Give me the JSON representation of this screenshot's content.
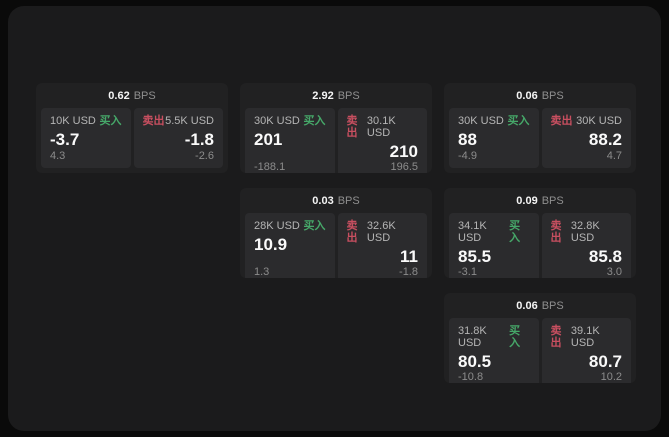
{
  "colors": {
    "background": "#0a0a0a",
    "panel": "#1b1b1c",
    "card": "#212122",
    "tile": "#2b2b2d",
    "text_primary": "#fafafa",
    "text_secondary": "#b5b5b5",
    "text_muted": "#8c8c8c",
    "buy_green": "#46a869",
    "sell_red": "#c84f60"
  },
  "cards": [
    {
      "spread": "0.62",
      "unit": "BPS",
      "buy": {
        "amount": "10K USD",
        "label": "买入",
        "price": "-3.7",
        "change": "4.3"
      },
      "sell": {
        "label": "卖出",
        "amount": "5.5K USD",
        "price": "-1.8",
        "change": "-2.6"
      }
    },
    {
      "spread": "2.92",
      "unit": "BPS",
      "buy": {
        "amount": "30K USD",
        "label": "买入",
        "price": "201",
        "change": "-188.1"
      },
      "sell": {
        "label": "卖出",
        "amount": "30.1K USD",
        "price": "210",
        "change": "196.5"
      }
    },
    {
      "spread": "0.06",
      "unit": "BPS",
      "buy": {
        "amount": "30K USD",
        "label": "买入",
        "price": "88",
        "change": "-4.9"
      },
      "sell": {
        "label": "卖出",
        "amount": "30K USD",
        "price": "88.2",
        "change": "4.7"
      }
    },
    {
      "spread": "0.03",
      "unit": "BPS",
      "buy": {
        "amount": "28K USD",
        "label": "买入",
        "price": "10.9",
        "change": "1.3"
      },
      "sell": {
        "label": "卖出",
        "amount": "32.6K USD",
        "price": "11",
        "change": "-1.8"
      }
    },
    {
      "spread": "0.09",
      "unit": "BPS",
      "buy": {
        "amount": "34.1K USD",
        "label": "买入",
        "price": "85.5",
        "change": "-3.1"
      },
      "sell": {
        "label": "卖出",
        "amount": "32.8K USD",
        "price": "85.8",
        "change": "3.0"
      }
    },
    {
      "spread": "0.06",
      "unit": "BPS",
      "buy": {
        "amount": "31.8K USD",
        "label": "买入",
        "price": "80.5",
        "change": "-10.8"
      },
      "sell": {
        "label": "卖出",
        "amount": "39.1K USD",
        "price": "80.7",
        "change": "10.2"
      }
    }
  ]
}
